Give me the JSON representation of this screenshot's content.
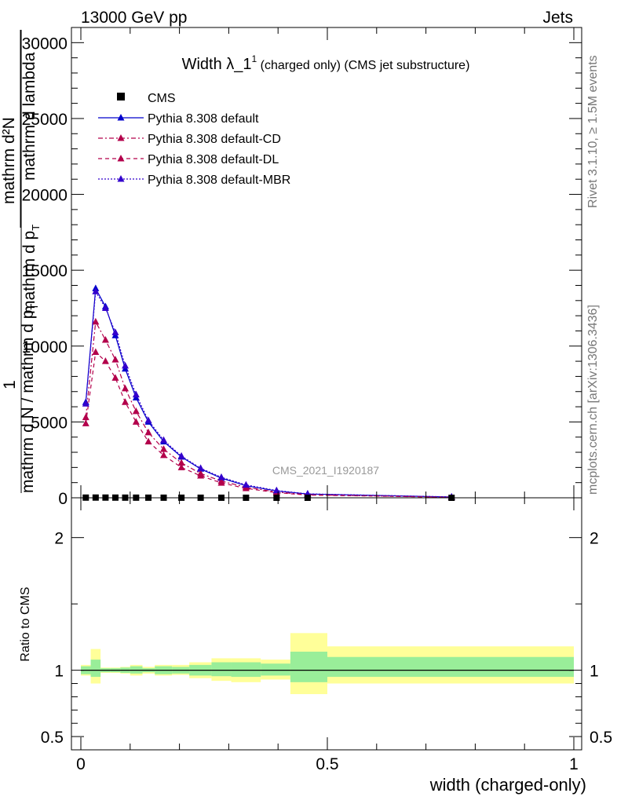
{
  "header": {
    "left": "13000 GeV pp",
    "right": "Jets"
  },
  "side_labels": {
    "rivet": "Rivet 3.1.10, ≥ 1.5M events",
    "mcplots": "mcplots.cern.ch [arXiv:1306.3436]"
  },
  "watermark": "CMS_2021_I1920187",
  "chart_data": {
    "type": "line",
    "title": "Width λ_1¹ (charged only) (CMS jet substructure)",
    "title_parts": {
      "main": "Width λ_1",
      "sup": "1",
      "rest": " (charged only) (CMS jet substructure)"
    },
    "xlabel": "width (charged-only)",
    "ylabel_parts": {
      "numerator": "1",
      "line_a": "mathrm d N / mathrm d p",
      "line_a_sub": "T",
      "line_b": "mathrm d²N",
      "line_c": "mathrm d p",
      "line_c_sub": "T",
      "line_d": "mathrm d lambda"
    },
    "ratio_ylabel": "Ratio to CMS",
    "xlim": [
      0,
      1
    ],
    "ylim": [
      0,
      31000
    ],
    "ratio_ylim": [
      0.4,
      2.3
    ],
    "x_ticks": [
      "0",
      "0.5",
      "1"
    ],
    "y_ticks": [
      "0",
      "5000",
      "10000",
      "15000",
      "20000",
      "25000",
      "30000"
    ],
    "ratio_ticks": [
      "0.5",
      "1",
      "2"
    ],
    "legend_position": "top-left",
    "x": [
      0.01,
      0.03,
      0.05,
      0.07,
      0.09,
      0.112,
      0.137,
      0.168,
      0.204,
      0.243,
      0.285,
      0.335,
      0.397,
      0.46,
      0.752
    ],
    "data": {
      "name": "CMS",
      "values": [
        12,
        15,
        14,
        12,
        10,
        9,
        8,
        7,
        6,
        5,
        4,
        3,
        2,
        1,
        0.3
      ]
    },
    "ratio_bands": {
      "x_edges": [
        0.0,
        0.02,
        0.04,
        0.06,
        0.08,
        0.1,
        0.125,
        0.15,
        0.185,
        0.22,
        0.265,
        0.305,
        0.365,
        0.425,
        0.5,
        1.0
      ],
      "inner": [
        [
          0.97,
          1.03
        ],
        [
          0.95,
          1.08
        ],
        [
          0.985,
          1.015
        ],
        [
          0.985,
          1.015
        ],
        [
          0.98,
          1.02
        ],
        [
          0.975,
          1.03
        ],
        [
          0.985,
          1.015
        ],
        [
          0.97,
          1.03
        ],
        [
          0.975,
          1.025
        ],
        [
          0.96,
          1.04
        ],
        [
          0.955,
          1.06
        ],
        [
          0.95,
          1.06
        ],
        [
          0.96,
          1.05
        ],
        [
          0.91,
          1.14
        ],
        [
          0.95,
          1.1
        ]
      ],
      "outer": [
        [
          0.96,
          1.04
        ],
        [
          0.9,
          1.16
        ],
        [
          0.98,
          1.02
        ],
        [
          0.98,
          1.02
        ],
        [
          0.975,
          1.025
        ],
        [
          0.96,
          1.04
        ],
        [
          0.975,
          1.025
        ],
        [
          0.96,
          1.04
        ],
        [
          0.965,
          1.04
        ],
        [
          0.94,
          1.06
        ],
        [
          0.92,
          1.09
        ],
        [
          0.91,
          1.09
        ],
        [
          0.93,
          1.08
        ],
        [
          0.82,
          1.28
        ],
        [
          0.9,
          1.18
        ]
      ]
    },
    "series": [
      {
        "name": "Pythia 8.308 default",
        "color": "#0000cc",
        "dash": "solid",
        "values": [
          6300,
          13800,
          12600,
          10700,
          8500,
          6600,
          5000,
          3700,
          2700,
          1900,
          1300,
          800,
          450,
          250,
          50
        ]
      },
      {
        "name": "Pythia 8.308 default-CD",
        "color": "#b3004b",
        "dash": "dashdot",
        "values": [
          5300,
          11600,
          10400,
          9100,
          7200,
          5700,
          4300,
          3200,
          2300,
          1600,
          1100,
          700,
          380,
          200,
          40
        ]
      },
      {
        "name": "Pythia 8.308 default-DL",
        "color": "#b3004b",
        "dash": "dashed",
        "values": [
          4900,
          9600,
          9000,
          7900,
          6300,
          5000,
          3700,
          2800,
          2000,
          1450,
          980,
          620,
          340,
          180,
          35
        ]
      },
      {
        "name": "Pythia 8.308 default-MBR",
        "color": "#3300cc",
        "dash": "dotted",
        "values": [
          6200,
          13600,
          12500,
          10900,
          8700,
          6800,
          5100,
          3800,
          2750,
          1950,
          1350,
          850,
          480,
          260,
          55
        ]
      }
    ]
  }
}
